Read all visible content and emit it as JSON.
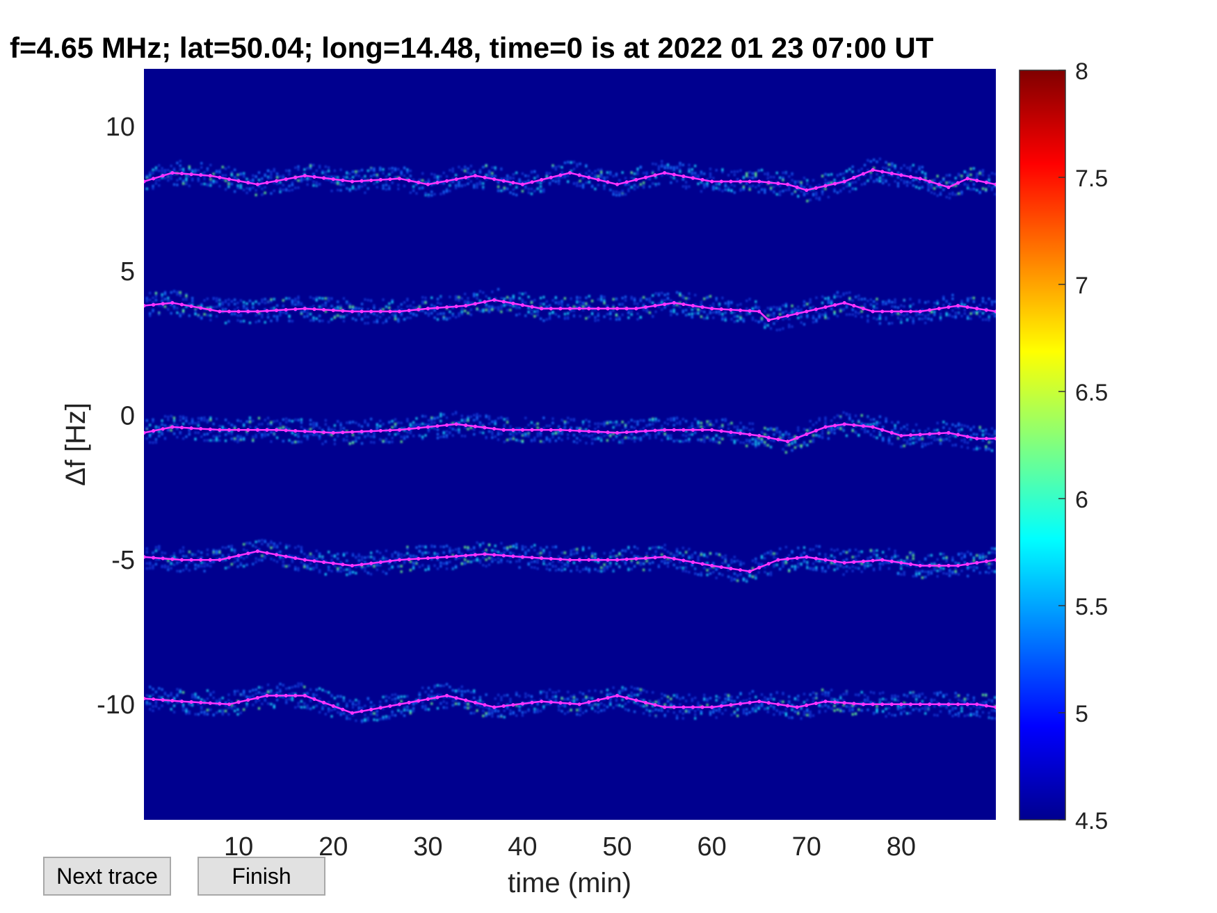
{
  "chart_data": {
    "type": "heatmap",
    "title": "f=4.65 MHz;  lat=50.04; long=14.48, time=0 is at 2022 01 23 07:00 UT",
    "xlabel": "time (min)",
    "ylabel": "Δf [Hz]",
    "xlim": [
      0,
      90
    ],
    "ylim": [
      -14,
      12
    ],
    "xticks": [
      10,
      20,
      30,
      40,
      50,
      60,
      70,
      80
    ],
    "yticks": [
      10,
      5,
      0,
      -5,
      -10
    ],
    "colorbar": {
      "min": 4.5,
      "max": 8,
      "ticks": [
        8,
        7.5,
        7,
        6.5,
        6,
        5.5,
        5,
        4.5
      ],
      "colormap": "jet"
    },
    "background_value": 4.5,
    "trace_color": "#ff33ff",
    "traces": [
      {
        "x": [
          0,
          3,
          7,
          12,
          17,
          22,
          27,
          30,
          35,
          40,
          45,
          50,
          55,
          60,
          65,
          68,
          70,
          74,
          77,
          82,
          85,
          87,
          90
        ],
        "y": [
          8.1,
          8.4,
          8.3,
          8.0,
          8.3,
          8.1,
          8.2,
          8.0,
          8.3,
          8.0,
          8.4,
          8.0,
          8.4,
          8.1,
          8.1,
          8.0,
          7.8,
          8.1,
          8.5,
          8.2,
          7.9,
          8.2,
          8.0
        ]
      },
      {
        "x": [
          0,
          3,
          8,
          12,
          17,
          22,
          27,
          30,
          34,
          37,
          42,
          47,
          52,
          56,
          60,
          65,
          66,
          70,
          74,
          77,
          82,
          86,
          90
        ],
        "y": [
          3.8,
          3.9,
          3.6,
          3.6,
          3.7,
          3.6,
          3.6,
          3.7,
          3.8,
          4.0,
          3.7,
          3.7,
          3.7,
          3.9,
          3.7,
          3.6,
          3.3,
          3.6,
          3.9,
          3.6,
          3.6,
          3.8,
          3.6
        ]
      },
      {
        "x": [
          0,
          3,
          8,
          14,
          20,
          27,
          33,
          38,
          44,
          50,
          55,
          60,
          65,
          68,
          72,
          74,
          77,
          80,
          85,
          88,
          90
        ],
        "y": [
          -0.6,
          -0.4,
          -0.5,
          -0.5,
          -0.6,
          -0.5,
          -0.3,
          -0.5,
          -0.5,
          -0.6,
          -0.5,
          -0.5,
          -0.7,
          -0.9,
          -0.4,
          -0.3,
          -0.4,
          -0.7,
          -0.6,
          -0.8,
          -0.8
        ]
      },
      {
        "x": [
          0,
          4,
          8,
          12,
          17,
          22,
          27,
          32,
          36,
          40,
          45,
          50,
          55,
          60,
          64,
          67,
          70,
          74,
          78,
          82,
          86,
          90
        ],
        "y": [
          -4.9,
          -5.0,
          -5.0,
          -4.7,
          -5.0,
          -5.2,
          -5.0,
          -4.9,
          -4.8,
          -4.9,
          -5.0,
          -5.0,
          -4.9,
          -5.2,
          -5.4,
          -5.0,
          -4.9,
          -5.1,
          -5.0,
          -5.2,
          -5.2,
          -5.0
        ]
      },
      {
        "x": [
          0,
          4,
          9,
          13,
          17,
          22,
          27,
          32,
          37,
          42,
          46,
          50,
          55,
          60,
          65,
          69,
          72,
          76,
          80,
          85,
          88,
          90
        ],
        "y": [
          -9.8,
          -9.9,
          -10.0,
          -9.7,
          -9.7,
          -10.3,
          -10.0,
          -9.7,
          -10.1,
          -9.9,
          -10.0,
          -9.7,
          -10.1,
          -10.1,
          -9.9,
          -10.1,
          -9.9,
          -10.0,
          -10.0,
          -10.0,
          -10.0,
          -10.1
        ]
      }
    ]
  },
  "buttons": {
    "next_trace": "Next trace",
    "finish": "Finish"
  }
}
